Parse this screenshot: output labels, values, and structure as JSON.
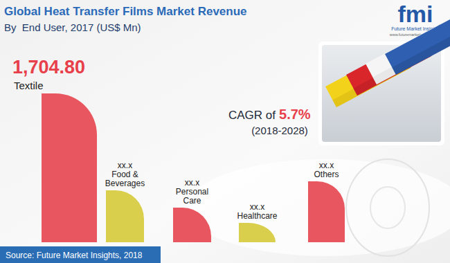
{
  "chart_data": {
    "type": "bar",
    "title": "Global Heat Transfer Films Market Revenue",
    "subtitle": "By  End User, 2017 (US$ Mn)",
    "categories": [
      "Textile",
      "Food & Beverages",
      "Personal Care",
      "Healthcare",
      "Others"
    ],
    "values": [
      1704.8,
      595,
      396,
      222,
      698
    ],
    "value_labels": [
      "1,704.80",
      "xx.x",
      "xx.x",
      "xx.x",
      "xx.x"
    ],
    "colors": [
      "#e8575f",
      "#d9cf4c",
      "#e8575f",
      "#d9cf4c",
      "#e8575f"
    ],
    "ylim": [
      0,
      1704.8
    ],
    "data_labels": true,
    "tick_labels": false,
    "grid": false,
    "annotations": {
      "cagr_text": "CAGR of",
      "cagr_value": "5.7%",
      "cagr_period": "(2018-2028)"
    },
    "source": "Source: Future Market Insights, 2018",
    "logo": {
      "text": "fmi",
      "name": "Future Market Insights",
      "url": "www.futuremarketinsights.com"
    }
  }
}
